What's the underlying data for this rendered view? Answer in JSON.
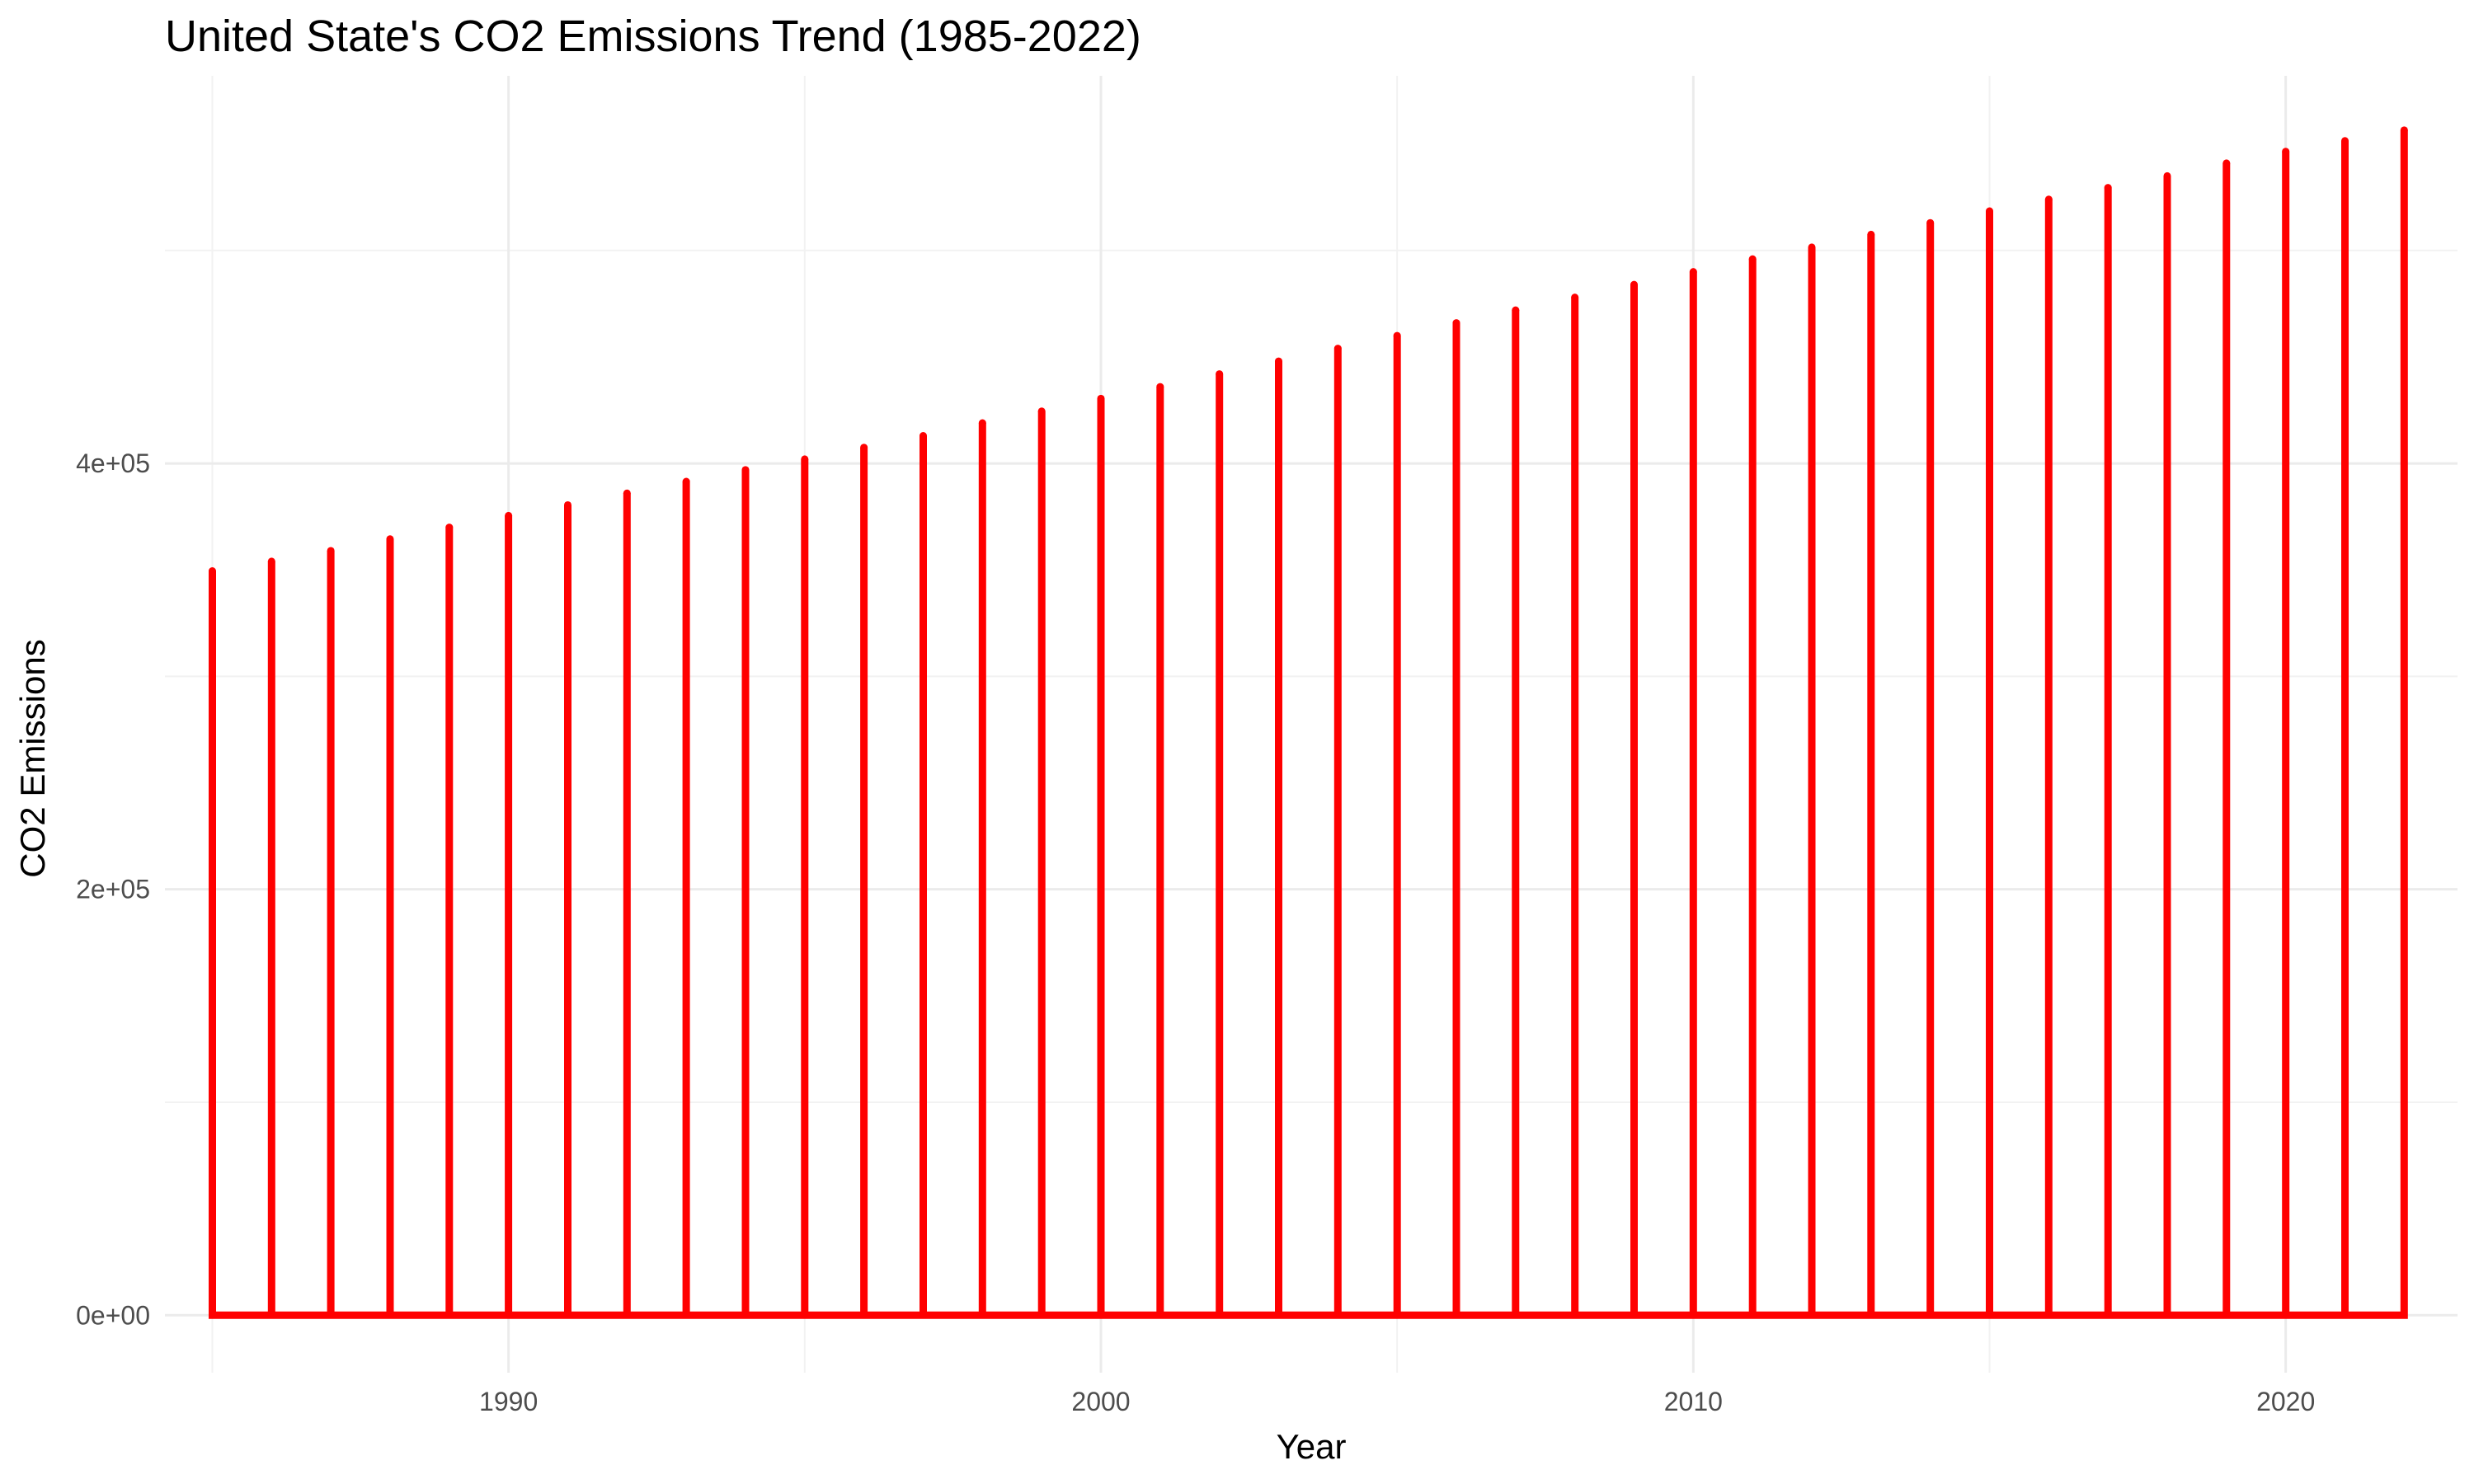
{
  "chart_data": {
    "type": "line",
    "title": "United State's CO2 Emissions Trend (1985-2022)",
    "xlabel": "Year",
    "ylabel": "CO2 Emissions",
    "xlim": [
      1984.2,
      2022.9
    ],
    "ylim": [
      -27000,
      582000
    ],
    "x_ticks": [
      1990,
      2000,
      2010,
      2020
    ],
    "x_tick_labels": [
      "1990",
      "2000",
      "2010",
      "2020"
    ],
    "y_ticks": [
      0,
      200000,
      400000
    ],
    "y_tick_labels": [
      "0e+00",
      "2e+05",
      "4e+05"
    ],
    "grid": true,
    "legend": "none",
    "line_color": "#ff0000",
    "x": [
      1985,
      1986,
      1987,
      1988,
      1989,
      1990,
      1991,
      1992,
      1993,
      1994,
      1995,
      1996,
      1997,
      1998,
      1999,
      2000,
      2001,
      2002,
      2003,
      2004,
      2005,
      2006,
      2007,
      2008,
      2009,
      2010,
      2011,
      2012,
      2013,
      2014,
      2015,
      2016,
      2017,
      2018,
      2019,
      2020,
      2021,
      2022
    ],
    "values": [
      349500,
      354000,
      359000,
      364500,
      370000,
      375500,
      380500,
      386000,
      391500,
      397000,
      402000,
      407500,
      413000,
      419000,
      424500,
      430500,
      436000,
      442000,
      448000,
      454000,
      460000,
      466000,
      472000,
      478000,
      484000,
      490000,
      496000,
      501500,
      507500,
      513000,
      518500,
      524000,
      529500,
      535000,
      541000,
      546500,
      551500,
      556500
    ]
  }
}
